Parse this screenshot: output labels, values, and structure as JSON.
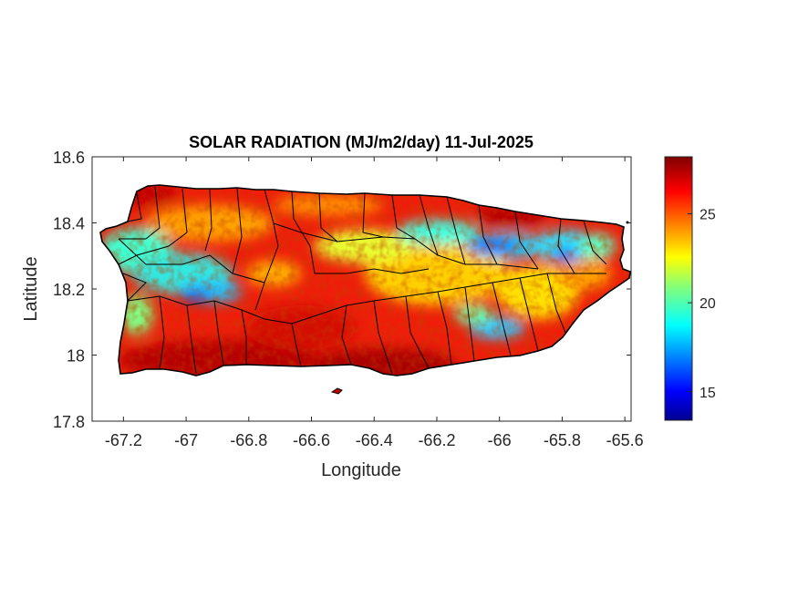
{
  "figure": {
    "title": "SOLAR RADIATION (MJ/m2/day) 11-Jul-2025",
    "xlabel": "Longitude",
    "ylabel": "Latitude"
  },
  "axes": {
    "xlim": [
      -67.3,
      -65.58
    ],
    "ylim": [
      17.8,
      18.6
    ],
    "xticks": [
      -67.2,
      -67,
      -66.8,
      -66.6,
      -66.4,
      -66.2,
      -66,
      -65.8,
      -65.6
    ],
    "xtick_labels": [
      "-67.2",
      "-67",
      "-66.8",
      "-66.6",
      "-66.4",
      "-66.2",
      "-66",
      "-65.8",
      "-65.6"
    ],
    "yticks": [
      18.6,
      18.4,
      18.2,
      18,
      17.8
    ],
    "ytick_labels": [
      "18.6",
      "18.4",
      "18.2",
      "18",
      "17.8"
    ]
  },
  "colorbar": {
    "colormap": "jet",
    "range": [
      13.4,
      28.2
    ],
    "ticks": [
      15,
      20,
      25
    ],
    "tick_labels": [
      "15",
      "20",
      "25"
    ]
  },
  "colors": {
    "low": "#00008f",
    "mid_low": "#00ffff",
    "mid": "#ffff00",
    "high": "#ff0000",
    "max": "#800000",
    "border": "#000000"
  }
}
